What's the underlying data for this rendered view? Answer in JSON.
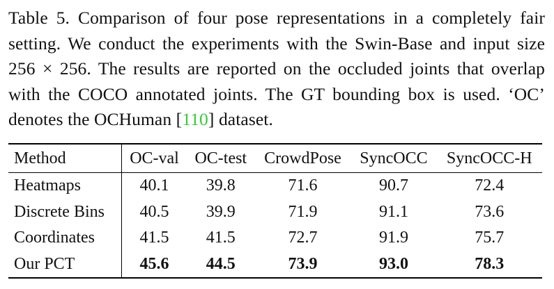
{
  "caption": {
    "text_before_cite": "Table 5. Comparison of four pose representations in a completely fair setting. We conduct the experiments with the Swin-Base and input size 256 × 256. The results are reported on the occluded joints that overlap with the COCO annotated joints. The GT bounding box is used. ‘OC’ denotes the OCHuman [",
    "cite": "110",
    "text_after_cite": "] dataset."
  },
  "table": {
    "headers": [
      "Method",
      "OC-val",
      "OC-test",
      "CrowdPose",
      "SyncOCC",
      "SyncOCC-H"
    ],
    "rows": [
      {
        "method": "Heatmaps",
        "values": [
          "40.1",
          "39.8",
          "71.6",
          "90.7",
          "72.4"
        ]
      },
      {
        "method": "Discrete Bins",
        "values": [
          "40.5",
          "39.9",
          "71.9",
          "91.1",
          "73.6"
        ]
      },
      {
        "method": "Coordinates",
        "values": [
          "41.5",
          "41.5",
          "72.7",
          "91.9",
          "75.7"
        ]
      },
      {
        "method": "Our PCT",
        "values": [
          "45.6",
          "44.5",
          "73.9",
          "93.0",
          "78.3"
        ]
      }
    ]
  },
  "colors": {
    "cite": "#33cc33"
  }
}
